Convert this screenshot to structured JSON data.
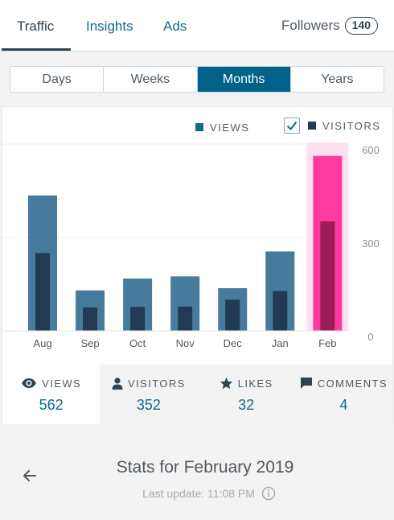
{
  "tabs": {
    "traffic": "Traffic",
    "insights": "Insights",
    "ads": "Ads",
    "followers": "Followers",
    "followers_count": "140"
  },
  "periods": [
    "Days",
    "Weeks",
    "Months",
    "Years"
  ],
  "selected_period": "Months",
  "legend": {
    "views": "VIEWS",
    "visitors": "VISITORS",
    "visitors_checked": true
  },
  "colors": {
    "views": "#467b9c",
    "visitors": "#223a53",
    "highlight_views": "#ff3aa0",
    "highlight_visitors": "#9b1d55",
    "highlight_bg": "#fde0ef",
    "accent": "#00618b"
  },
  "chart_data": {
    "type": "bar",
    "categories": [
      "Aug",
      "Sep",
      "Oct",
      "Nov",
      "Dec",
      "Jan",
      "Feb"
    ],
    "series": [
      {
        "name": "VIEWS",
        "values": [
          435,
          130,
          168,
          175,
          137,
          255,
          562
        ]
      },
      {
        "name": "VISITORS",
        "values": [
          250,
          75,
          77,
          78,
          100,
          128,
          352
        ]
      }
    ],
    "highlighted": "Feb",
    "ytick_labels": [
      "600",
      "300",
      "0"
    ],
    "ylim": [
      0,
      600
    ]
  },
  "summary": [
    {
      "icon": "eye-icon",
      "label": "VIEWS",
      "value": "562"
    },
    {
      "icon": "person-icon",
      "label": "VISITORS",
      "value": "352"
    },
    {
      "icon": "star-icon",
      "label": "LIKES",
      "value": "32"
    },
    {
      "icon": "comment-icon",
      "label": "COMMENTS",
      "value": "4"
    }
  ],
  "footer": {
    "title": "Stats for February 2019",
    "subtitle": "Last update: 11:08 PM"
  }
}
